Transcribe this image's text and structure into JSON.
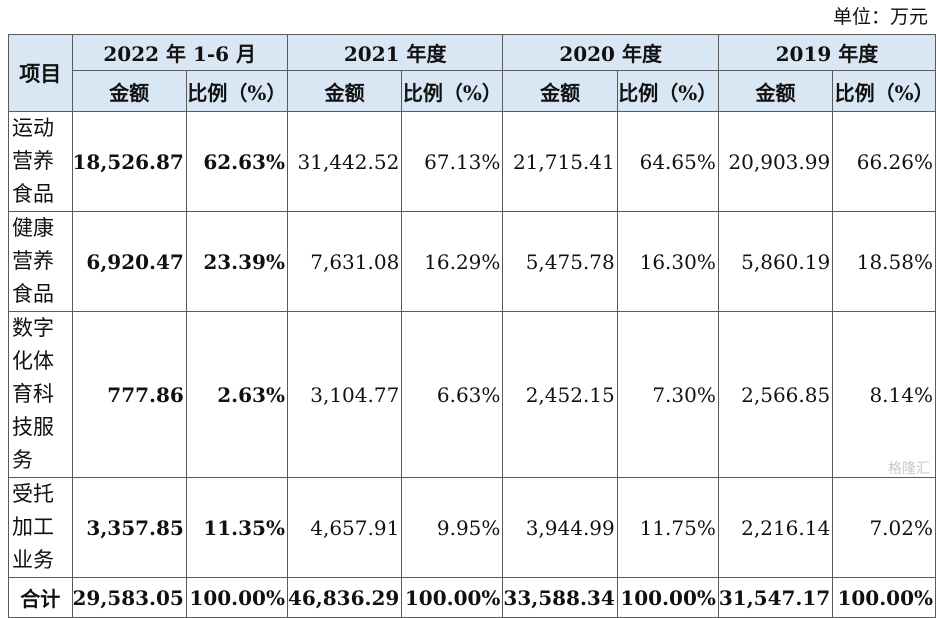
{
  "unit_label": "单位：万元",
  "header": {
    "project": "项目",
    "periods": [
      "2022 年 1-6 月",
      "2021 年度",
      "2020 年度",
      "2019 年度"
    ],
    "amount": "金额",
    "ratio": "比例（%）"
  },
  "rows": [
    {
      "name": "运动营养食品",
      "values": [
        "18,526.87",
        "62.63%",
        "31,442.52",
        "67.13%",
        "21,715.41",
        "64.65%",
        "20,903.99",
        "66.26%"
      ]
    },
    {
      "name": "健康营养食品",
      "values": [
        "6,920.47",
        "23.39%",
        "7,631.08",
        "16.29%",
        "5,475.78",
        "16.30%",
        "5,860.19",
        "18.58%"
      ]
    },
    {
      "name": "数字化体育科技服务",
      "values": [
        "777.86",
        "2.63%",
        "3,104.77",
        "6.63%",
        "2,452.15",
        "7.30%",
        "2,566.85",
        "8.14%"
      ]
    },
    {
      "name": "受托加工业务",
      "values": [
        "3,357.85",
        "11.35%",
        "4,657.91",
        "9.95%",
        "3,944.99",
        "11.75%",
        "2,216.14",
        "7.02%"
      ]
    }
  ],
  "total": {
    "name": "合计",
    "values": [
      "29,583.05",
      "100.00%",
      "46,836.29",
      "100.00%",
      "33,588.34",
      "100.00%",
      "31,547.17",
      "100.00%"
    ]
  },
  "watermark": "格隆汇"
}
